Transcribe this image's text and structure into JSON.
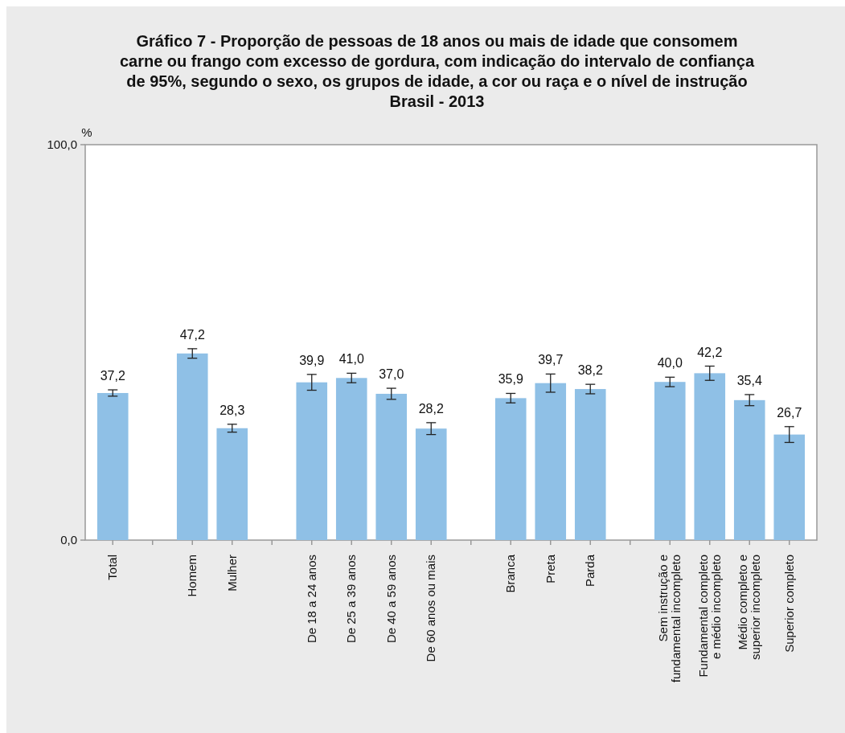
{
  "chart_data": {
    "type": "bar",
    "title": "Gráfico 7 - Proporção de pessoas de 18 anos ou mais de idade que consomem\ncarne ou frango com excesso de gordura, com indicação do intervalo de confiança\nde 95%, segundo o sexo, os grupos de idade, a cor ou raça e o nível de instrução\nBrasil - 2013",
    "ylabel": "%",
    "categories": [
      "Total",
      null,
      "Homem",
      "Mulher",
      null,
      "De 18 a 24 anos",
      "De 25 a 39 anos",
      "De 40 a 59 anos",
      "De 60 anos ou mais",
      null,
      "Branca",
      "Preta",
      "Parda",
      null,
      "Sem instrução e\nfundamental incompleto",
      "Fundamental completo\ne médio incompleto",
      "Médio completo e\nsuperior incompleto",
      "Superior completo"
    ],
    "values": [
      37.2,
      null,
      47.2,
      28.3,
      null,
      39.9,
      41.0,
      37.0,
      28.2,
      null,
      35.9,
      39.7,
      38.2,
      null,
      40.0,
      42.2,
      35.4,
      26.7
    ],
    "value_labels": [
      "37,2",
      null,
      "47,2",
      "28,3",
      null,
      "39,9",
      "41,0",
      "37,0",
      "28,2",
      null,
      "35,9",
      "39,7",
      "38,2",
      null,
      "40,0",
      "42,2",
      "35,4",
      "26,7"
    ],
    "errors": [
      0.8,
      null,
      1.2,
      1.0,
      null,
      2.0,
      1.2,
      1.4,
      1.5,
      null,
      1.2,
      2.3,
      1.2,
      null,
      1.2,
      1.8,
      1.4,
      2.0
    ],
    "color": "#8fc0e6",
    "ylim": [
      0,
      100
    ],
    "yticks": [
      {
        "value": 0,
        "label": "0,0"
      },
      {
        "value": 100,
        "label": "100,0"
      }
    ],
    "grid": false
  }
}
